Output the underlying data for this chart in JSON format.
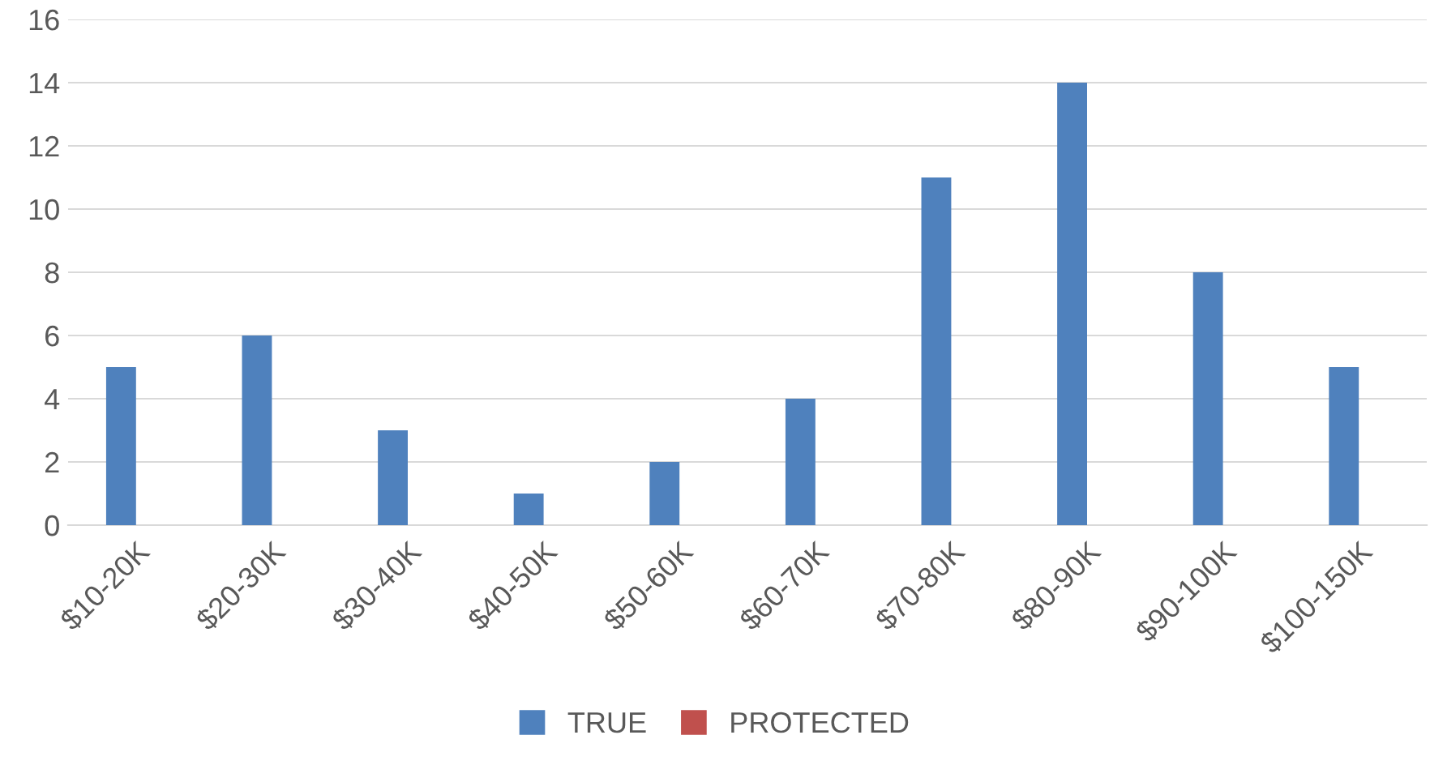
{
  "chart_data": {
    "type": "bar",
    "categories": [
      "$10-20K",
      "$20-30K",
      "$30-40K",
      "$40-50K",
      "$50-60K",
      "$60-70K",
      "$70-80K",
      "$80-90K",
      "$90-100K",
      "$100-150K"
    ],
    "series": [
      {
        "name": "TRUE",
        "color": "#4f81bd",
        "values": [
          5,
          6,
          3,
          1,
          2,
          4,
          11,
          14,
          8,
          5
        ]
      },
      {
        "name": "PROTECTED",
        "color": "#c0504d",
        "values": [
          null,
          null,
          null,
          null,
          null,
          null,
          null,
          null,
          null,
          null
        ]
      }
    ],
    "ylim": [
      0,
      16
    ],
    "yticks": [
      0,
      2,
      4,
      6,
      8,
      10,
      12,
      14,
      16
    ],
    "grid": "y",
    "legend": "bottom"
  }
}
